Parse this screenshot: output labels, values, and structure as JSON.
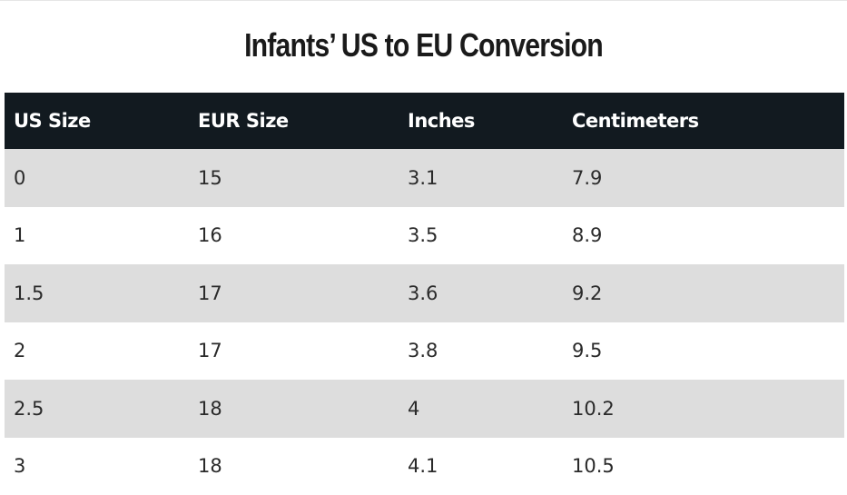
{
  "title": "Infants’ US to EU Conversion",
  "table": {
    "headers": [
      "US Size",
      "EUR Size",
      "Inches",
      "Centimeters"
    ],
    "rows": [
      [
        "0",
        "15",
        "3.1",
        "7.9"
      ],
      [
        "1",
        "16",
        "3.5",
        "8.9"
      ],
      [
        "1.5",
        "17",
        "3.6",
        "9.2"
      ],
      [
        "2",
        "17",
        "3.8",
        "9.5"
      ],
      [
        "2.5",
        "18",
        "4",
        "10.2"
      ],
      [
        "3",
        "18",
        "4.1",
        "10.5"
      ]
    ]
  }
}
